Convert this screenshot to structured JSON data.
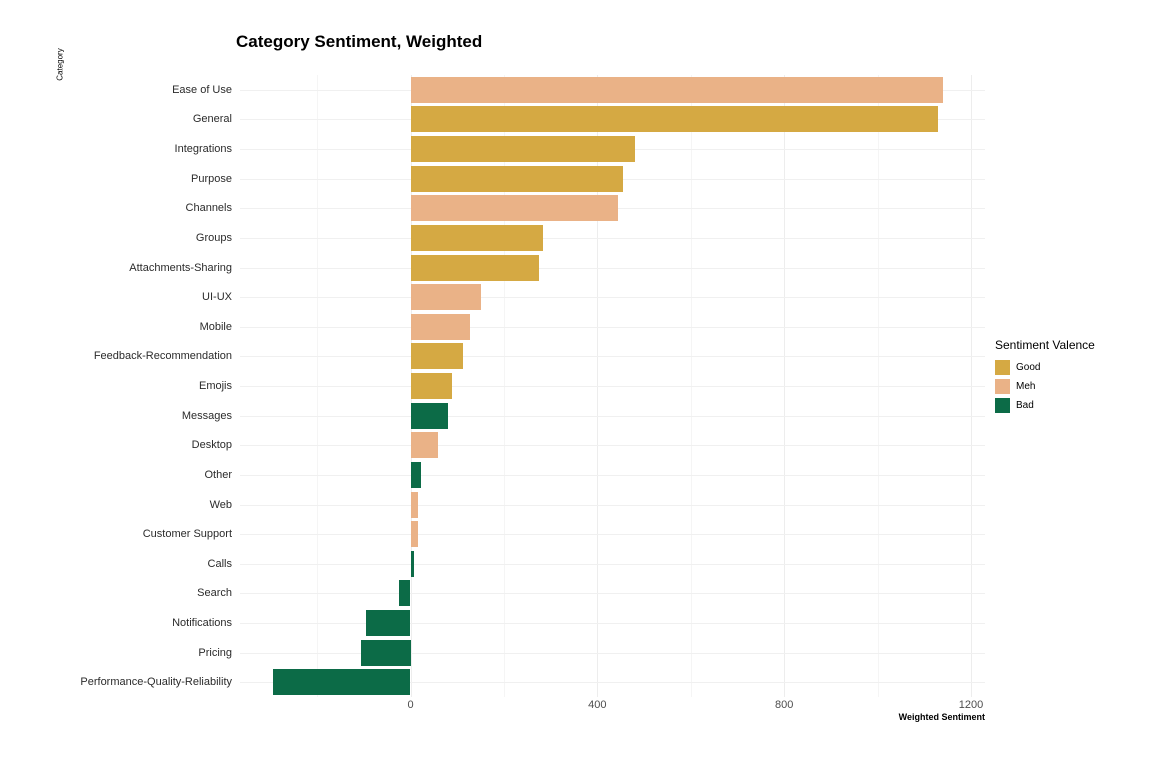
{
  "chart_data": {
    "type": "bar",
    "orientation": "horizontal",
    "title": "Category Sentiment, Weighted",
    "xlabel": "Weighted Sentiment",
    "ylabel": "Category",
    "xlim": [
      -365,
      1230
    ],
    "x_ticks": [
      0,
      400,
      800,
      1200
    ],
    "x_minor_ticks": [
      -200,
      200,
      600,
      1000
    ],
    "grid": true,
    "legend_position": "right",
    "legend_title": "Sentiment Valence",
    "legend_labels": [
      "Good",
      "Meh",
      "Bad"
    ],
    "colors": {
      "Good": "#D5A943",
      "Meh": "#EAB287",
      "Bad": "#0C6B47"
    },
    "categories": [
      "Ease of Use",
      "General",
      "Integrations",
      "Purpose",
      "Channels",
      "Groups",
      "Attachments-Sharing",
      "UI-UX",
      "Mobile",
      "Feedback-Recommendation",
      "Emojis",
      "Messages",
      "Desktop",
      "Other",
      "Web",
      "Customer Support",
      "Calls",
      "Search",
      "Notifications",
      "Pricing",
      "Performance-Quality-Reliability"
    ],
    "values": [
      1140,
      1130,
      480,
      455,
      445,
      283,
      275,
      150,
      128,
      112,
      88,
      80,
      58,
      22,
      17,
      15,
      8,
      -24,
      -96,
      -107,
      -295
    ],
    "valence": [
      "Meh",
      "Good",
      "Good",
      "Good",
      "Meh",
      "Good",
      "Good",
      "Meh",
      "Meh",
      "Good",
      "Good",
      "Bad",
      "Meh",
      "Bad",
      "Meh",
      "Meh",
      "Bad",
      "Bad",
      "Bad",
      "Bad",
      "Bad"
    ]
  }
}
